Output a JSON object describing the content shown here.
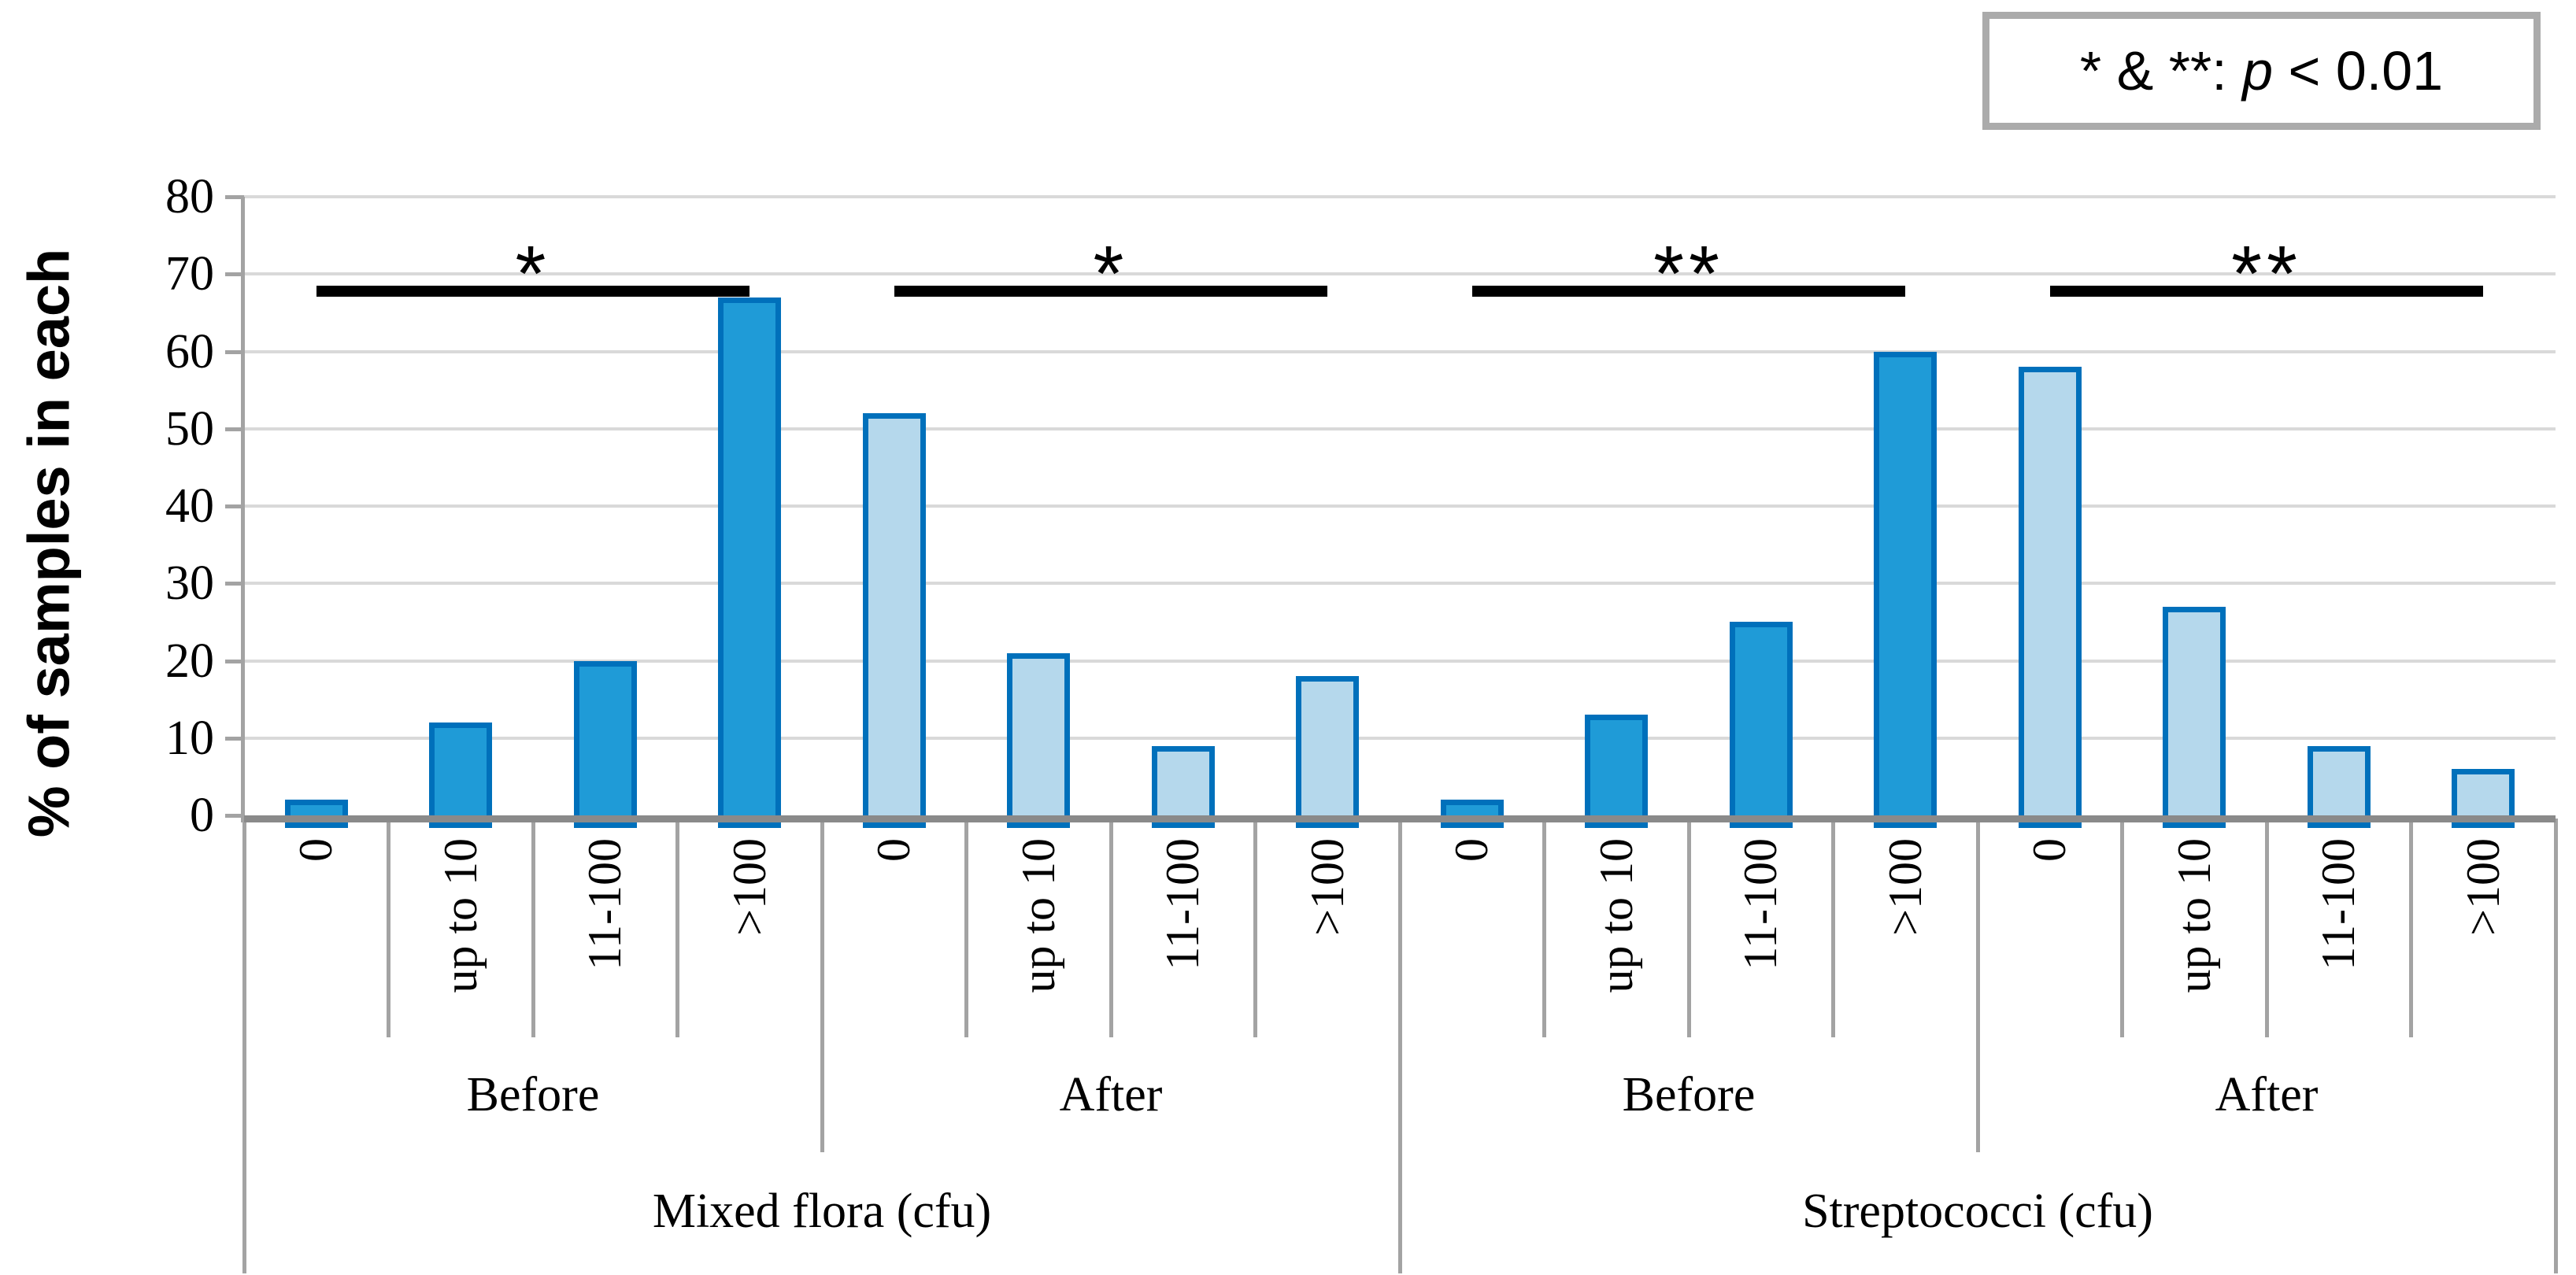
{
  "legend": {
    "text": "* & **: p < 0.01",
    "prefix": "* & **: ",
    "p": "p",
    "suffix": " < 0.01"
  },
  "chart_data": {
    "type": "bar",
    "title": "",
    "ylabel": "% of samples in each",
    "xlabel": "",
    "ylim": [
      0,
      80
    ],
    "y_ticks": [
      0,
      10,
      20,
      30,
      40,
      50,
      60,
      70,
      80
    ],
    "grid": true,
    "legend_position": "top-right",
    "categories": [
      "0",
      "up to 10",
      "11-100",
      ">100"
    ],
    "outer_groups": [
      "Mixed flora (cfu)",
      "Streptococci (cfu)"
    ],
    "groups": [
      {
        "organism": "Mixed flora (cfu)",
        "time": "Before",
        "style": "dark",
        "values": [
          2,
          12,
          20,
          67
        ]
      },
      {
        "organism": "Mixed flora (cfu)",
        "time": "After",
        "style": "light",
        "values": [
          52,
          21,
          9,
          18
        ]
      },
      {
        "organism": "Streptococci (cfu)",
        "time": "Before",
        "style": "dark",
        "values": [
          2,
          13,
          25,
          60
        ]
      },
      {
        "organism": "Streptococci (cfu)",
        "time": "After",
        "style": "light",
        "values": [
          58,
          27,
          9,
          6
        ]
      }
    ],
    "significance": [
      {
        "group_index": 0,
        "label": "*",
        "y": 68.5
      },
      {
        "group_index": 1,
        "label": "*",
        "y": 68.5
      },
      {
        "group_index": 2,
        "label": "**",
        "y": 68.5
      },
      {
        "group_index": 3,
        "label": "**",
        "y": 68.5
      }
    ]
  },
  "colors": {
    "dark_fill": "#1F9BD7",
    "light_fill": "#B5D8EC",
    "bar_border": "#0070BB",
    "gridline": "#D9D9D9",
    "baseline": "#8A8A8A",
    "axis_gray": "#A3A3A3",
    "significance": "#000000",
    "legend_border": "#ABABAB",
    "text": "#000000"
  }
}
